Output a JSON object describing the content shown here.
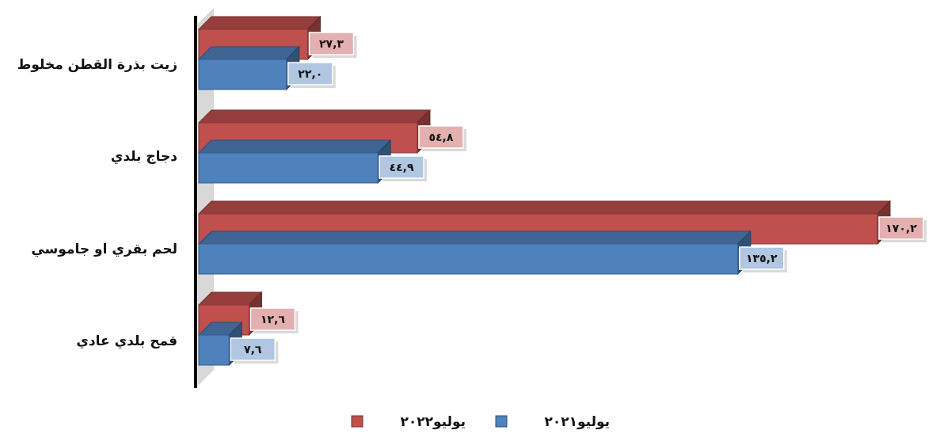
{
  "chart_data": {
    "type": "bar",
    "orientation": "horizontal",
    "categories": [
      "زيت بذرة القطن مخلوط",
      "دجاج بلدي",
      "لحم بقري او جاموسي",
      "قمح بلدي عادي"
    ],
    "series": [
      {
        "name": "يوليو٢٠٢٢",
        "values": [
          27.3,
          54.8,
          170.2,
          12.6
        ],
        "labels": [
          "٢٧,٣",
          "٥٤,٨",
          "١٧٠,٢",
          "١٢,٦"
        ],
        "color": "#c0504d"
      },
      {
        "name": "يوليو٢٠٢١",
        "values": [
          22.0,
          44.9,
          135.2,
          7.6
        ],
        "labels": [
          "٢٢,٠",
          "٤٤,٩",
          "١٣٥,٢",
          "٧,٦"
        ],
        "color": "#4f81bd"
      }
    ],
    "title": "",
    "xlabel": "",
    "ylabel": "",
    "xlim": [
      0,
      170.2
    ],
    "grid": false,
    "legend_position": "bottom",
    "style": "3d"
  }
}
